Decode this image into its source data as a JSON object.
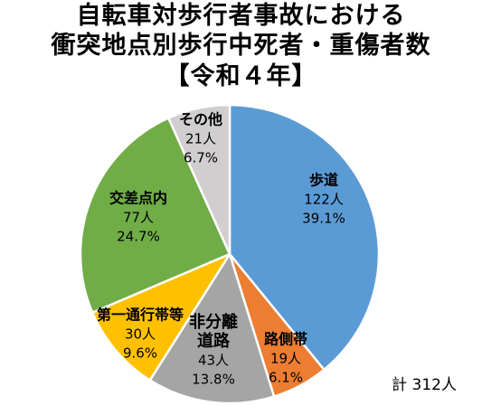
{
  "chart_data": {
    "type": "pie",
    "title": [
      "自転車対歩行者事故における",
      "衝突地点別歩行中死者・重傷者数",
      "【令和４年】"
    ],
    "slices": [
      {
        "label": "歩道",
        "count": "122人",
        "percent": "39.1%",
        "value": 122,
        "color": "#5B9BD5"
      },
      {
        "label": "路側帯",
        "count": "19人",
        "percent": "6.1%",
        "value": 19,
        "color": "#ED7D31"
      },
      {
        "label": "非分離道路",
        "label_lines": [
          "非分離",
          "道路"
        ],
        "count": "43人",
        "percent": "13.8%",
        "value": 43,
        "color": "#A5A5A5"
      },
      {
        "label": "第一通行帯等",
        "count": "30人",
        "percent": "9.6%",
        "value": 30,
        "color": "#FFC000"
      },
      {
        "label": "交差点内",
        "count": "77人",
        "percent": "24.7%",
        "value": 77,
        "color": "#70AD47"
      },
      {
        "label": "その他",
        "count": "21人",
        "percent": "6.7%",
        "value": 21,
        "color": "#D0CECE"
      }
    ],
    "total_label": "計 312人",
    "total": 312
  }
}
